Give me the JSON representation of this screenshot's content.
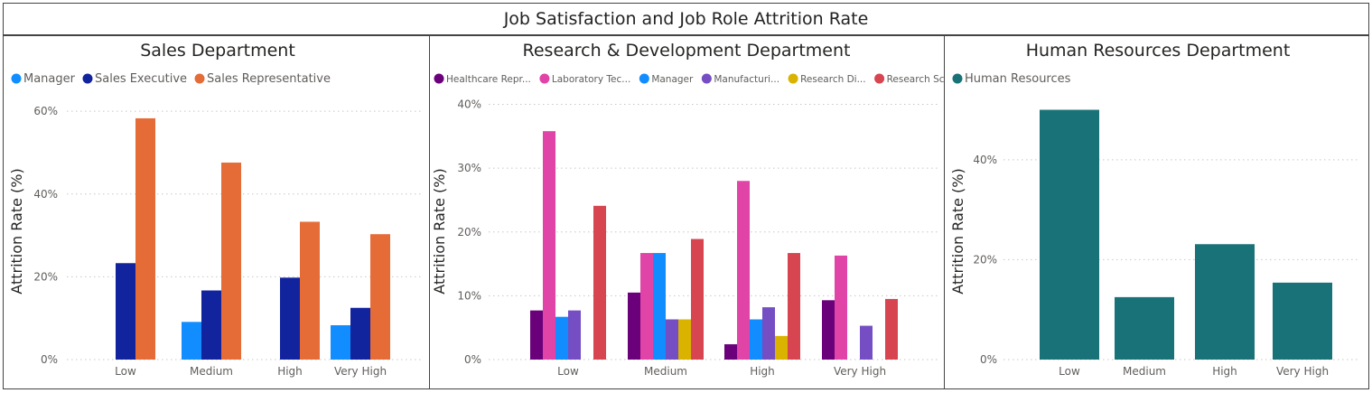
{
  "title": "Job Satisfaction and Job Role Attrition Rate",
  "chart_data": [
    {
      "type": "bar",
      "title": "Sales Department",
      "ylabel": "Attrition Rate (%)",
      "xlabel": "",
      "categories": [
        "Low",
        "Medium",
        "High",
        "Very High"
      ],
      "yticks": [
        "0%",
        "20%",
        "40%",
        "60%"
      ],
      "ytick_values": [
        0,
        20,
        40,
        60
      ],
      "ylim": [
        0,
        62
      ],
      "grid": true,
      "legend": "top-left",
      "series": [
        {
          "name": "Manager",
          "color": "#118dff",
          "values": [
            null,
            9.1,
            null,
            8.3
          ]
        },
        {
          "name": "Sales Executive",
          "color": "#12239e",
          "values": [
            23.3,
            16.7,
            19.8,
            12.5
          ]
        },
        {
          "name": "Sales Representative",
          "color": "#e66c37",
          "values": [
            58.3,
            47.6,
            33.3,
            30.3
          ]
        }
      ]
    },
    {
      "type": "bar",
      "title": "Research & Development Department",
      "ylabel": "Attrition Rate (%)",
      "xlabel": "",
      "categories": [
        "Low",
        "Medium",
        "High",
        "Very High"
      ],
      "yticks": [
        "0%",
        "10%",
        "20%",
        "30%",
        "40%"
      ],
      "ytick_values": [
        0,
        10,
        20,
        30,
        40
      ],
      "ylim": [
        0,
        40.5
      ],
      "grid": true,
      "legend": "top-left",
      "series": [
        {
          "name": "Healthcare Repr...",
          "color": "#6b007b",
          "values": [
            7.7,
            10.5,
            2.4,
            9.3
          ]
        },
        {
          "name": "Laboratory Tec...",
          "color": "#e044a7",
          "values": [
            35.8,
            16.7,
            28.0,
            16.3
          ]
        },
        {
          "name": "Manager",
          "color": "#118dff",
          "values": [
            6.7,
            16.7,
            6.3,
            null
          ]
        },
        {
          "name": "Manufacturi...",
          "color": "#744ec2",
          "values": [
            7.7,
            6.3,
            8.2,
            5.3
          ]
        },
        {
          "name": "Research Di...",
          "color": "#d9b300",
          "values": [
            null,
            6.3,
            3.7,
            null
          ]
        },
        {
          "name": "Research Sci...",
          "color": "#d64550",
          "values": [
            24.1,
            18.9,
            16.7,
            9.5
          ]
        }
      ]
    },
    {
      "type": "bar",
      "title": "Human Resources Department",
      "ylabel": "Attrition Rate (%)",
      "xlabel": "",
      "categories": [
        "Low",
        "Medium",
        "High",
        "Very High"
      ],
      "yticks": [
        "0%",
        "20%",
        "40%"
      ],
      "ytick_values": [
        0,
        20,
        40
      ],
      "ylim": [
        0,
        51
      ],
      "grid": true,
      "legend": "top-left",
      "series": [
        {
          "name": "Human Resources",
          "color": "#197278",
          "values": [
            50.0,
            12.5,
            23.1,
            15.4
          ]
        }
      ]
    }
  ]
}
